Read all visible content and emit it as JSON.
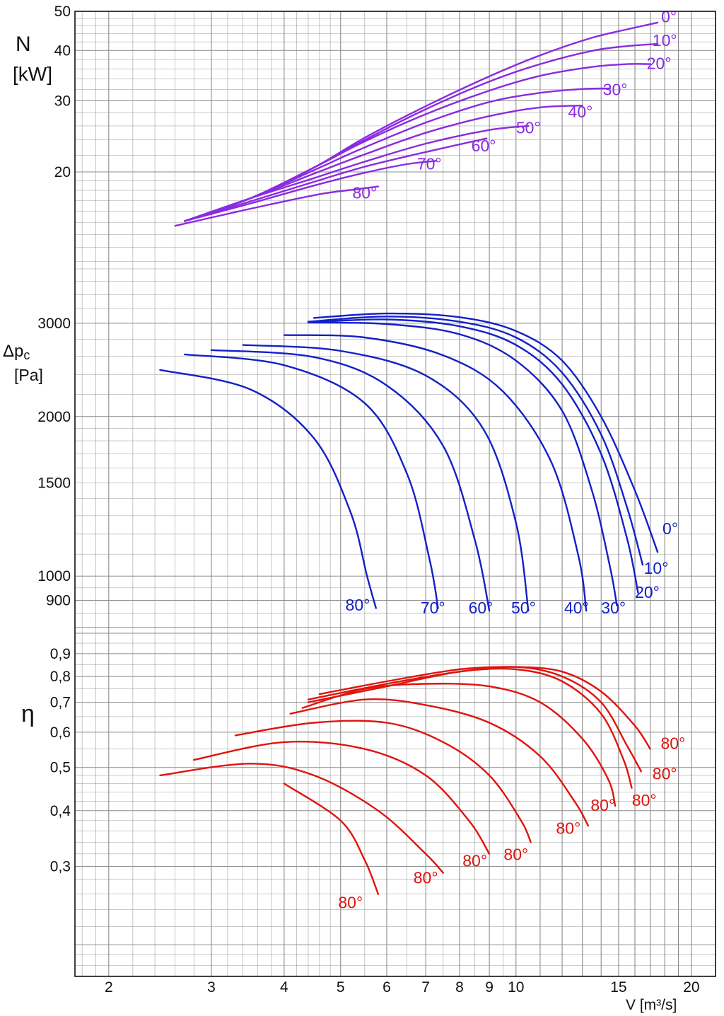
{
  "colors": {
    "power": "#8a2be2",
    "pressure": "#1420c8",
    "efficiency": "#e0140e",
    "grid": "#8c8c8c"
  },
  "chart_data": [
    {
      "type": "line",
      "panel": "power",
      "ylabel": "N",
      "yunit": "[kW]",
      "xscale": "log",
      "yscale": "log",
      "ylim": [
        11.5,
        50
      ],
      "yticks": [
        {
          "v": 20,
          "label": "20"
        },
        {
          "v": 30,
          "label": "30"
        },
        {
          "v": 40,
          "label": "40"
        },
        {
          "v": 50,
          "label": "50"
        }
      ],
      "series": [
        {
          "name": "0°",
          "x": [
            2.7,
            3.5,
            4.5,
            5.5,
            7.0,
            9.0,
            11.0,
            13.5,
            15.5,
            17.5
          ],
          "y": [
            15.1,
            17.2,
            20.5,
            24.3,
            29.1,
            34.5,
            38.9,
            43.0,
            45.1,
            46.9
          ]
        },
        {
          "name": "10°",
          "x": [
            2.7,
            3.5,
            4.5,
            5.5,
            7.0,
            9.0,
            11.0,
            13.5,
            15.5,
            17.5
          ],
          "y": [
            15.1,
            17.2,
            20.5,
            24.0,
            28.6,
            33.5,
            37.0,
            39.9,
            41.0,
            41.5
          ]
        },
        {
          "name": "20°",
          "x": [
            2.7,
            3.5,
            4.5,
            5.5,
            7.0,
            9.0,
            11.0,
            13.5,
            15.5,
            17.0
          ],
          "y": [
            15.1,
            17.2,
            20.5,
            23.8,
            27.8,
            31.8,
            34.6,
            36.4,
            37.0,
            37.0
          ]
        },
        {
          "name": "30°",
          "x": [
            2.7,
            3.5,
            4.5,
            5.5,
            7.0,
            9.0,
            11.0,
            13.0,
            14.5
          ],
          "y": [
            15.1,
            17.2,
            20.2,
            23.0,
            26.5,
            29.8,
            31.4,
            32.1,
            32.2
          ]
        },
        {
          "name": "40°",
          "x": [
            2.7,
            3.5,
            4.5,
            5.5,
            7.0,
            9.0,
            11.0,
            13.0
          ],
          "y": [
            15.1,
            17.2,
            19.8,
            22.1,
            25.0,
            27.5,
            28.9,
            29.2
          ]
        },
        {
          "name": "50°",
          "x": [
            2.7,
            3.5,
            4.5,
            5.5,
            7.0,
            9.0,
            10.5
          ],
          "y": [
            15.1,
            17.2,
            19.3,
            21.2,
            23.5,
            25.4,
            26.0
          ]
        },
        {
          "name": "60°",
          "x": [
            2.7,
            3.5,
            4.5,
            5.5,
            7.0,
            8.9
          ],
          "y": [
            15.1,
            16.9,
            18.9,
            20.6,
            22.4,
            24.2
          ]
        },
        {
          "name": "70°",
          "x": [
            2.7,
            3.5,
            4.5,
            5.5,
            6.5,
            7.3
          ],
          "y": [
            15.1,
            16.7,
            18.5,
            19.9,
            20.9,
            21.3
          ]
        },
        {
          "name": "80°",
          "x": [
            2.6,
            3.3,
            4.0,
            4.7,
            5.3,
            5.8
          ],
          "y": [
            14.7,
            15.9,
            16.9,
            17.7,
            18.1,
            18.4
          ]
        }
      ],
      "labels": [
        {
          "text": "0°",
          "x": 18.3,
          "y": 47.0
        },
        {
          "text": "10°",
          "x": 18.0,
          "y": 41.0
        },
        {
          "text": "20°",
          "x": 17.6,
          "y": 36.0
        },
        {
          "text": "30°",
          "x": 14.8,
          "y": 31.0
        },
        {
          "text": "40°",
          "x": 12.9,
          "y": 27.3
        },
        {
          "text": "50°",
          "x": 10.5,
          "y": 24.9
        },
        {
          "text": "60°",
          "x": 8.8,
          "y": 22.5
        },
        {
          "text": "70°",
          "x": 7.1,
          "y": 20.3
        },
        {
          "text": "80°",
          "x": 5.5,
          "y": 17.2
        }
      ]
    },
    {
      "type": "line",
      "panel": "pressure",
      "ylabel": "Δp",
      "ylabel_sub": "c",
      "yunit": "[Pa]",
      "xscale": "log",
      "yscale": "log",
      "ylim": [
        780,
        3800
      ],
      "yticks": [
        {
          "v": 900,
          "label": "900"
        },
        {
          "v": 1000,
          "label": "1000"
        },
        {
          "v": 1500,
          "label": "1500"
        },
        {
          "v": 2000,
          "label": "2000"
        },
        {
          "v": 3000,
          "label": "3000"
        }
      ],
      "series": [
        {
          "name": "0°",
          "x": [
            4.5,
            6.0,
            8.0,
            10.0,
            12.0,
            14.0,
            16.0,
            17.5
          ],
          "y": [
            3070,
            3130,
            3080,
            2900,
            2550,
            2000,
            1450,
            1110
          ]
        },
        {
          "name": "10°",
          "x": [
            4.4,
            6.0,
            8.0,
            10.0,
            12.0,
            14.0,
            15.5,
            16.5
          ],
          "y": [
            3020,
            3090,
            3020,
            2820,
            2420,
            1850,
            1350,
            1050
          ]
        },
        {
          "name": "20°",
          "x": [
            4.4,
            6.0,
            8.0,
            10.0,
            12.0,
            14.0,
            15.5,
            16.2
          ],
          "y": [
            3010,
            3050,
            2960,
            2730,
            2300,
            1700,
            1180,
            930
          ]
        },
        {
          "name": "30°",
          "x": [
            4.4,
            6.0,
            8.0,
            10.0,
            12.0,
            13.5,
            14.5,
            14.9
          ],
          "y": [
            3010,
            2990,
            2860,
            2550,
            2050,
            1450,
            1040,
            880
          ]
        },
        {
          "name": "40°",
          "x": [
            4.0,
            5.5,
            7.5,
            9.5,
            11.5,
            12.8,
            13.2
          ],
          "y": [
            2850,
            2820,
            2610,
            2230,
            1640,
            1090,
            860
          ]
        },
        {
          "name": "50°",
          "x": [
            3.4,
            5.0,
            7.0,
            8.8,
            10.0,
            10.5
          ],
          "y": [
            2730,
            2660,
            2390,
            1890,
            1260,
            860
          ]
        },
        {
          "name": "60°",
          "x": [
            3.0,
            4.5,
            6.0,
            7.5,
            8.5,
            9.0
          ],
          "y": [
            2670,
            2590,
            2290,
            1760,
            1170,
            860
          ]
        },
        {
          "name": "70°",
          "x": [
            2.7,
            4.0,
            5.5,
            6.5,
            7.1,
            7.35
          ],
          "y": [
            2620,
            2500,
            2120,
            1560,
            1080,
            870
          ]
        },
        {
          "name": "80°",
          "x": [
            2.45,
            3.5,
            4.5,
            5.2,
            5.55,
            5.75
          ],
          "y": [
            2450,
            2250,
            1820,
            1320,
            1000,
            870
          ]
        }
      ],
      "labels": [
        {
          "text": "0°",
          "x": 18.4,
          "y": 1200
        },
        {
          "text": "10°",
          "x": 17.4,
          "y": 1010
        },
        {
          "text": "20°",
          "x": 16.8,
          "y": 910
        },
        {
          "text": "30°",
          "x": 14.7,
          "y": 850
        },
        {
          "text": "40°",
          "x": 12.7,
          "y": 850
        },
        {
          "text": "50°",
          "x": 10.3,
          "y": 850
        },
        {
          "text": "60°",
          "x": 8.7,
          "y": 850
        },
        {
          "text": "70°",
          "x": 7.2,
          "y": 850
        },
        {
          "text": "80°",
          "x": 5.35,
          "y": 860
        }
      ]
    },
    {
      "type": "line",
      "panel": "efficiency",
      "ylabel": "η",
      "xlabel": "V [m³/s]",
      "xscale": "log",
      "yscale": "log",
      "ylim": [
        0.17,
        1.0
      ],
      "xlim": [
        1.75,
        22.0
      ],
      "xticks": [
        {
          "v": 2,
          "label": "2"
        },
        {
          "v": 3,
          "label": "3"
        },
        {
          "v": 4,
          "label": "4"
        },
        {
          "v": 5,
          "label": "5"
        },
        {
          "v": 6,
          "label": "6"
        },
        {
          "v": 7,
          "label": "7"
        },
        {
          "v": 8,
          "label": "8"
        },
        {
          "v": 9,
          "label": "9"
        },
        {
          "v": 10,
          "label": "10"
        },
        {
          "v": 15,
          "label": "15"
        },
        {
          "v": 20,
          "label": "20"
        }
      ],
      "yticks": [
        {
          "v": 0.3,
          "label": "0,3"
        },
        {
          "v": 0.4,
          "label": "0,4"
        },
        {
          "v": 0.5,
          "label": "0,5"
        },
        {
          "v": 0.6,
          "label": "0,6"
        },
        {
          "v": 0.7,
          "label": "0,7"
        },
        {
          "v": 0.8,
          "label": "0,8"
        },
        {
          "v": 0.9,
          "label": "0,9"
        }
      ],
      "series": [
        {
          "name": "0°",
          "x": [
            4.6,
            6.0,
            8.0,
            10.0,
            12.0,
            14.0,
            16.0,
            17.0
          ],
          "y": [
            0.73,
            0.78,
            0.83,
            0.84,
            0.82,
            0.74,
            0.62,
            0.55
          ]
        },
        {
          "name": "10°",
          "x": [
            4.4,
            6.0,
            8.0,
            10.0,
            12.0,
            14.0,
            15.5,
            16.4
          ],
          "y": [
            0.71,
            0.77,
            0.82,
            0.84,
            0.8,
            0.7,
            0.56,
            0.49
          ]
        },
        {
          "name": "20°",
          "x": [
            4.4,
            6.0,
            8.0,
            10.0,
            12.0,
            14.0,
            15.3,
            15.8
          ],
          "y": [
            0.7,
            0.76,
            0.82,
            0.83,
            0.78,
            0.66,
            0.52,
            0.45
          ]
        },
        {
          "name": "30°",
          "x": [
            4.3,
            5.5,
            7.0,
            9.0,
            11.0,
            13.0,
            14.4,
            14.8
          ],
          "y": [
            0.68,
            0.75,
            0.77,
            0.76,
            0.7,
            0.58,
            0.47,
            0.41
          ]
        },
        {
          "name": "40°",
          "x": [
            4.1,
            5.5,
            7.0,
            9.0,
            11.0,
            12.6,
            13.3
          ],
          "y": [
            0.66,
            0.71,
            0.69,
            0.63,
            0.53,
            0.42,
            0.37
          ]
        },
        {
          "name": "50°",
          "x": [
            3.3,
            4.5,
            6.0,
            7.5,
            9.0,
            10.2,
            10.6
          ],
          "y": [
            0.59,
            0.63,
            0.63,
            0.57,
            0.48,
            0.38,
            0.34
          ]
        },
        {
          "name": "60°",
          "x": [
            2.8,
            4.0,
            5.5,
            7.0,
            8.3,
            9.0
          ],
          "y": [
            0.52,
            0.57,
            0.55,
            0.48,
            0.38,
            0.32
          ]
        },
        {
          "name": "70°",
          "x": [
            2.45,
            3.5,
            4.5,
            5.8,
            7.0,
            7.5
          ],
          "y": [
            0.48,
            0.51,
            0.48,
            0.4,
            0.32,
            0.29
          ]
        },
        {
          "name": "80°",
          "x": [
            4.0,
            5.0,
            5.5,
            5.8
          ],
          "y": [
            0.46,
            0.38,
            0.31,
            0.26
          ]
        }
      ],
      "labels": [
        {
          "text": "80°",
          "x": 18.6,
          "y": 0.55
        },
        {
          "text": "80°",
          "x": 18.0,
          "y": 0.47
        },
        {
          "text": "80°",
          "x": 16.6,
          "y": 0.41
        },
        {
          "text": "80°",
          "x": 14.1,
          "y": 0.4
        },
        {
          "text": "80°",
          "x": 12.3,
          "y": 0.355
        },
        {
          "text": "80°",
          "x": 10.0,
          "y": 0.31
        },
        {
          "text": "80°",
          "x": 8.5,
          "y": 0.3
        },
        {
          "text": "80°",
          "x": 7.0,
          "y": 0.275
        },
        {
          "text": "80°",
          "x": 5.2,
          "y": 0.242
        }
      ]
    }
  ]
}
